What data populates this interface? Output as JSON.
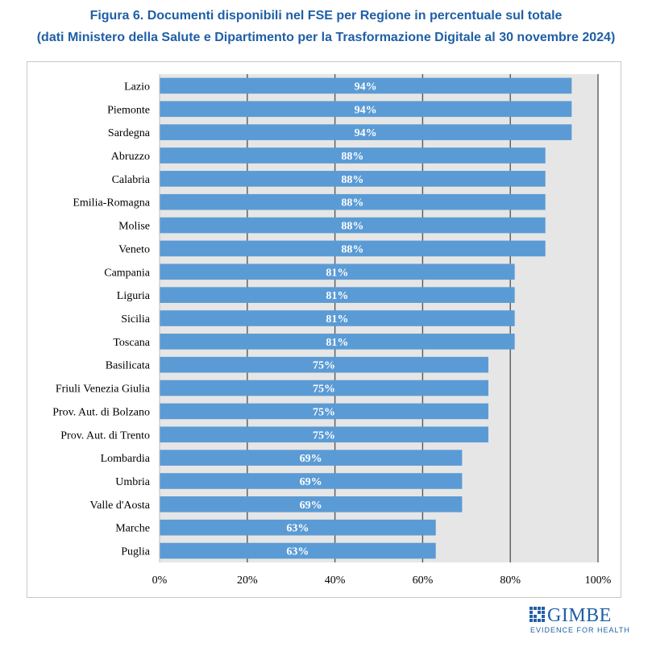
{
  "title": {
    "line1": "Figura 6. Documenti disponibili nel FSE per Regione in percentuale sul totale",
    "line2": "(dati Ministero della Salute e Dipartimento per la Trasformazione Digitale al 30 novembre 2024)"
  },
  "logo": {
    "name": "GIMBE",
    "tagline": "EVIDENCE FOR HEALTH"
  },
  "colors": {
    "bar": "#5b9bd5",
    "plot_background": "#e6e6e6",
    "grid": "#595959",
    "title": "#1f5fa6"
  },
  "chart_data": {
    "type": "bar",
    "orientation": "horizontal",
    "title": "Figura 6. Documenti disponibili nel FSE per Regione in percentuale sul totale",
    "subtitle": "(dati Ministero della Salute e Dipartimento per la Trasformazione Digitale al 30 novembre 2024)",
    "categories": [
      "Lazio",
      "Piemonte",
      "Sardegna",
      "Abruzzo",
      "Calabria",
      "Emilia-Romagna",
      "Molise",
      "Veneto",
      "Campania",
      "Liguria",
      "Sicilia",
      "Toscana",
      "Basilicata",
      "Friuli Venezia Giulia",
      "Prov. Aut. di Bolzano",
      "Prov. Aut. di Trento",
      "Lombardia",
      "Umbria",
      "Valle d'Aosta",
      "Marche",
      "Puglia"
    ],
    "values": [
      94,
      94,
      94,
      88,
      88,
      88,
      88,
      88,
      81,
      81,
      81,
      81,
      75,
      75,
      75,
      75,
      69,
      69,
      69,
      63,
      63
    ],
    "data_labels": [
      "94%",
      "94%",
      "94%",
      "88%",
      "88%",
      "88%",
      "88%",
      "88%",
      "81%",
      "81%",
      "81%",
      "81%",
      "75%",
      "75%",
      "75%",
      "75%",
      "69%",
      "69%",
      "69%",
      "63%",
      "63%"
    ],
    "xlim": [
      0,
      100
    ],
    "x_ticks": [
      0,
      20,
      40,
      60,
      80,
      100
    ],
    "x_tick_labels": [
      "0%",
      "20%",
      "40%",
      "60%",
      "80%",
      "100%"
    ],
    "xlabel": "",
    "ylabel": "",
    "grid": true,
    "legend": false
  }
}
